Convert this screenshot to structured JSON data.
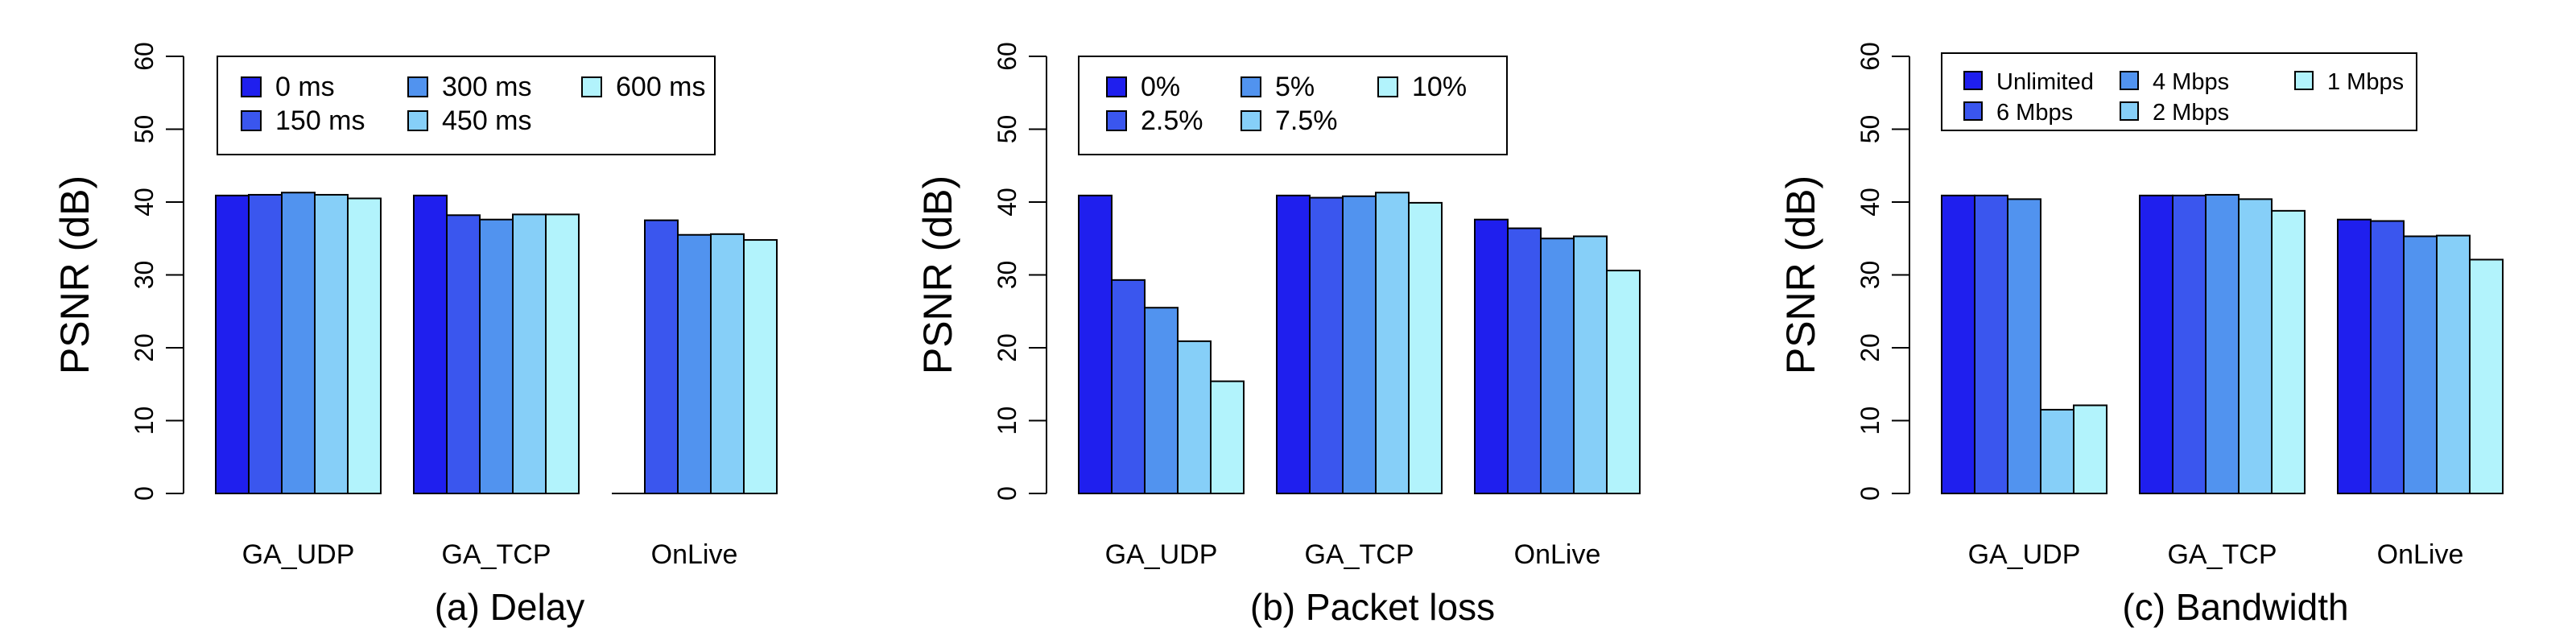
{
  "chart_data": [
    {
      "type": "bar",
      "caption": "(a) Delay",
      "ylabel": "PSNR (dB)",
      "ylim": [
        0,
        60
      ],
      "yticks": [
        0,
        10,
        20,
        30,
        40,
        50,
        60
      ],
      "categories": [
        "GA_UDP",
        "GA_TCP",
        "OnLive"
      ],
      "legend": {
        "placement": "top-left",
        "columns": 3
      },
      "series": [
        {
          "name": "0 ms",
          "color": "#1f1fee",
          "values": [
            40.9,
            40.9,
            0
          ]
        },
        {
          "name": "150 ms",
          "color": "#3a56ee",
          "values": [
            41.0,
            38.2,
            37.5
          ]
        },
        {
          "name": "300 ms",
          "color": "#5193ef",
          "values": [
            41.3,
            37.6,
            35.5
          ]
        },
        {
          "name": "450 ms",
          "color": "#86cff8",
          "values": [
            41.0,
            38.3,
            35.6
          ]
        },
        {
          "name": "600 ms",
          "color": "#b2f3fc",
          "values": [
            40.5,
            38.3,
            34.8
          ]
        }
      ]
    },
    {
      "type": "bar",
      "caption": "(b) Packet loss",
      "ylabel": "PSNR (dB)",
      "ylim": [
        0,
        60
      ],
      "yticks": [
        0,
        10,
        20,
        30,
        40,
        50,
        60
      ],
      "categories": [
        "GA_UDP",
        "GA_TCP",
        "OnLive"
      ],
      "legend": {
        "placement": "top-left",
        "columns": 3
      },
      "series": [
        {
          "name": "0%",
          "color": "#1f1fee",
          "values": [
            40.9,
            40.9,
            37.6
          ]
        },
        {
          "name": "2.5%",
          "color": "#3a56ee",
          "values": [
            29.3,
            40.6,
            36.4
          ]
        },
        {
          "name": "5%",
          "color": "#5193ef",
          "values": [
            25.5,
            40.8,
            35.0
          ]
        },
        {
          "name": "7.5%",
          "color": "#86cff8",
          "values": [
            20.9,
            41.3,
            35.3
          ]
        },
        {
          "name": "10%",
          "color": "#b2f3fc",
          "values": [
            15.4,
            39.9,
            30.6
          ]
        }
      ]
    },
    {
      "type": "bar",
      "caption": "(c) Bandwidth",
      "ylabel": "PSNR (dB)",
      "ylim": [
        0,
        60
      ],
      "yticks": [
        0,
        10,
        20,
        30,
        40,
        50,
        60
      ],
      "categories": [
        "GA_UDP",
        "GA_TCP",
        "OnLive"
      ],
      "legend": {
        "placement": "top-left",
        "columns": 3
      },
      "series": [
        {
          "name": "Unlimited",
          "color": "#1f1fee",
          "values": [
            40.9,
            40.9,
            37.6
          ]
        },
        {
          "name": "6 Mbps",
          "color": "#3a56ee",
          "values": [
            40.9,
            40.9,
            37.4
          ]
        },
        {
          "name": "4 Mbps",
          "color": "#5193ef",
          "values": [
            40.4,
            41.0,
            35.3
          ]
        },
        {
          "name": "2 Mbps",
          "color": "#86cff8",
          "values": [
            11.5,
            40.4,
            35.4
          ]
        },
        {
          "name": "1 Mbps",
          "color": "#b2f3fc",
          "values": [
            12.1,
            38.8,
            32.1
          ]
        }
      ]
    }
  ]
}
